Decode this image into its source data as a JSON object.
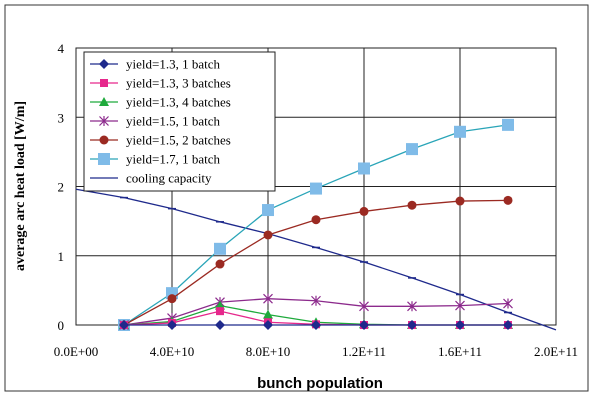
{
  "chart_data": {
    "type": "line",
    "title": "",
    "xlabel": "bunch population",
    "ylabel": "average arc heat load [W/m]",
    "xlim": [
      0,
      200000000000.0
    ],
    "ylim": [
      0,
      4
    ],
    "x_tick_labels": [
      "0.0E+00",
      "4.0E+10",
      "8.0E+10",
      "1.2E+11",
      "1.6E+11",
      "2.0E+11"
    ],
    "x_tick_values": [
      0,
      40000000000.0,
      80000000000.0,
      120000000000.0,
      160000000000.0,
      200000000000.0
    ],
    "y_tick_labels": [
      "0",
      "1",
      "2",
      "3",
      "4"
    ],
    "y_tick_values": [
      0,
      1,
      2,
      3,
      4
    ],
    "grid": true,
    "legend_position": "top-left",
    "series": [
      {
        "name": "yield=1.3, 1 batch",
        "color": "#1f2a8c",
        "marker": "diamond",
        "x": [
          20000000000.0,
          40000000000.0,
          60000000000.0,
          80000000000.0,
          100000000000.0,
          120000000000.0,
          140000000000.0,
          160000000000.0,
          180000000000.0
        ],
        "y": [
          0,
          0,
          0,
          0,
          0,
          0,
          0,
          0,
          0
        ]
      },
      {
        "name": "yield=1.3, 3 batches",
        "color": "#e6288c",
        "marker": "square",
        "x": [
          20000000000.0,
          40000000000.0,
          60000000000.0,
          80000000000.0,
          100000000000.0,
          120000000000.0,
          140000000000.0,
          160000000000.0,
          180000000000.0
        ],
        "y": [
          0,
          0.03,
          0.2,
          0.04,
          0.01,
          0,
          0,
          0,
          0
        ]
      },
      {
        "name": "yield=1.3, 4 batches",
        "color": "#1faa3c",
        "marker": "triangle",
        "x": [
          20000000000.0,
          40000000000.0,
          60000000000.0,
          80000000000.0,
          100000000000.0,
          120000000000.0,
          140000000000.0,
          160000000000.0,
          180000000000.0
        ],
        "y": [
          0,
          0.05,
          0.28,
          0.15,
          0.04,
          0.01,
          0,
          0,
          0
        ]
      },
      {
        "name": "yield=1.5, 1 batch",
        "color": "#8c2a8c",
        "marker": "star",
        "x": [
          20000000000.0,
          40000000000.0,
          60000000000.0,
          80000000000.0,
          100000000000.0,
          120000000000.0,
          140000000000.0,
          160000000000.0,
          180000000000.0
        ],
        "y": [
          0,
          0.1,
          0.33,
          0.38,
          0.35,
          0.27,
          0.27,
          0.28,
          0.31
        ]
      },
      {
        "name": "yield=1.5, 2 batches",
        "color": "#9b2a22",
        "marker": "circle",
        "x": [
          20000000000.0,
          40000000000.0,
          60000000000.0,
          80000000000.0,
          100000000000.0,
          120000000000.0,
          140000000000.0,
          160000000000.0,
          180000000000.0
        ],
        "y": [
          0,
          0.38,
          0.88,
          1.3,
          1.52,
          1.64,
          1.73,
          1.79,
          1.8
        ]
      },
      {
        "name": "yield=1.7, 1 batch",
        "color": "#7fbbe8",
        "line_color": "#2aa5b8",
        "marker": "big-square",
        "x": [
          20000000000.0,
          40000000000.0,
          60000000000.0,
          80000000000.0,
          100000000000.0,
          120000000000.0,
          140000000000.0,
          160000000000.0,
          180000000000.0
        ],
        "y": [
          0,
          0.46,
          1.1,
          1.66,
          1.97,
          2.26,
          2.54,
          2.79,
          2.89
        ]
      },
      {
        "name": "cooling capacity",
        "color": "#1f2a8c",
        "marker": "dash",
        "x": [
          0,
          20000000000.0,
          40000000000.0,
          60000000000.0,
          80000000000.0,
          100000000000.0,
          120000000000.0,
          140000000000.0,
          160000000000.0,
          180000000000.0,
          200000000000.0
        ],
        "y": [
          1.96,
          1.84,
          1.68,
          1.49,
          1.32,
          1.12,
          0.91,
          0.68,
          0.44,
          0.18,
          -0.07
        ]
      }
    ]
  }
}
